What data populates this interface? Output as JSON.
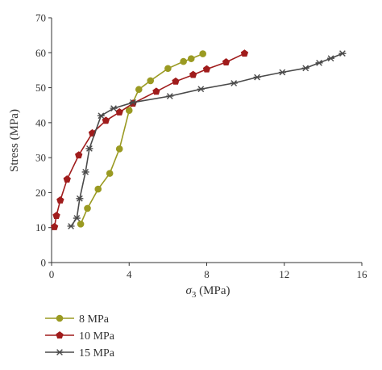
{
  "chart_data": {
    "type": "line",
    "xlabel_main": "σ",
    "xlabel_sub": "3",
    "xlabel_unit": " (MPa)",
    "ylabel": "Stress (MPa)",
    "xlim": [
      0,
      16
    ],
    "ylim": [
      0,
      70
    ],
    "xticks": [
      0,
      4,
      8,
      12,
      16
    ],
    "yticks": [
      0,
      10,
      20,
      30,
      40,
      50,
      60,
      70
    ],
    "grid": false,
    "legend_placement": "bottom-left",
    "series": [
      {
        "name": "8 MPa",
        "color": "#9a9a22",
        "marker": "circle",
        "x": [
          1.5,
          1.85,
          2.4,
          3.0,
          3.5,
          4.0,
          4.5,
          5.1,
          6.0,
          6.8,
          7.2,
          7.8
        ],
        "y": [
          11,
          15.5,
          21,
          25.5,
          32.5,
          43.5,
          49.5,
          52,
          55.5,
          57.5,
          58.3,
          59.7
        ]
      },
      {
        "name": "10 MPa",
        "color": "#a01c1c",
        "marker": "pentagon",
        "x": [
          0.15,
          0.25,
          0.45,
          0.8,
          1.4,
          2.1,
          2.8,
          3.5,
          4.2,
          5.4,
          6.4,
          7.3,
          8.0,
          9.0,
          9.95
        ],
        "y": [
          10.2,
          13.4,
          17.8,
          23.8,
          30.7,
          37,
          40.6,
          43,
          45.5,
          48.9,
          51.8,
          53.7,
          55.3,
          57.3,
          59.8
        ]
      },
      {
        "name": "15 MPa",
        "color": "#4a4a4a",
        "marker": "asterisk",
        "x": [
          1.0,
          1.3,
          1.45,
          1.75,
          1.95,
          2.55,
          3.2,
          4.2,
          6.1,
          7.7,
          9.4,
          10.6,
          11.9,
          13.1,
          13.8,
          14.4,
          15.0
        ],
        "y": [
          10.4,
          12.7,
          18.3,
          25.9,
          32.6,
          42,
          44.1,
          45.8,
          47.6,
          49.6,
          51.3,
          53,
          54.4,
          55.6,
          57.1,
          58.4,
          59.8
        ]
      }
    ]
  }
}
